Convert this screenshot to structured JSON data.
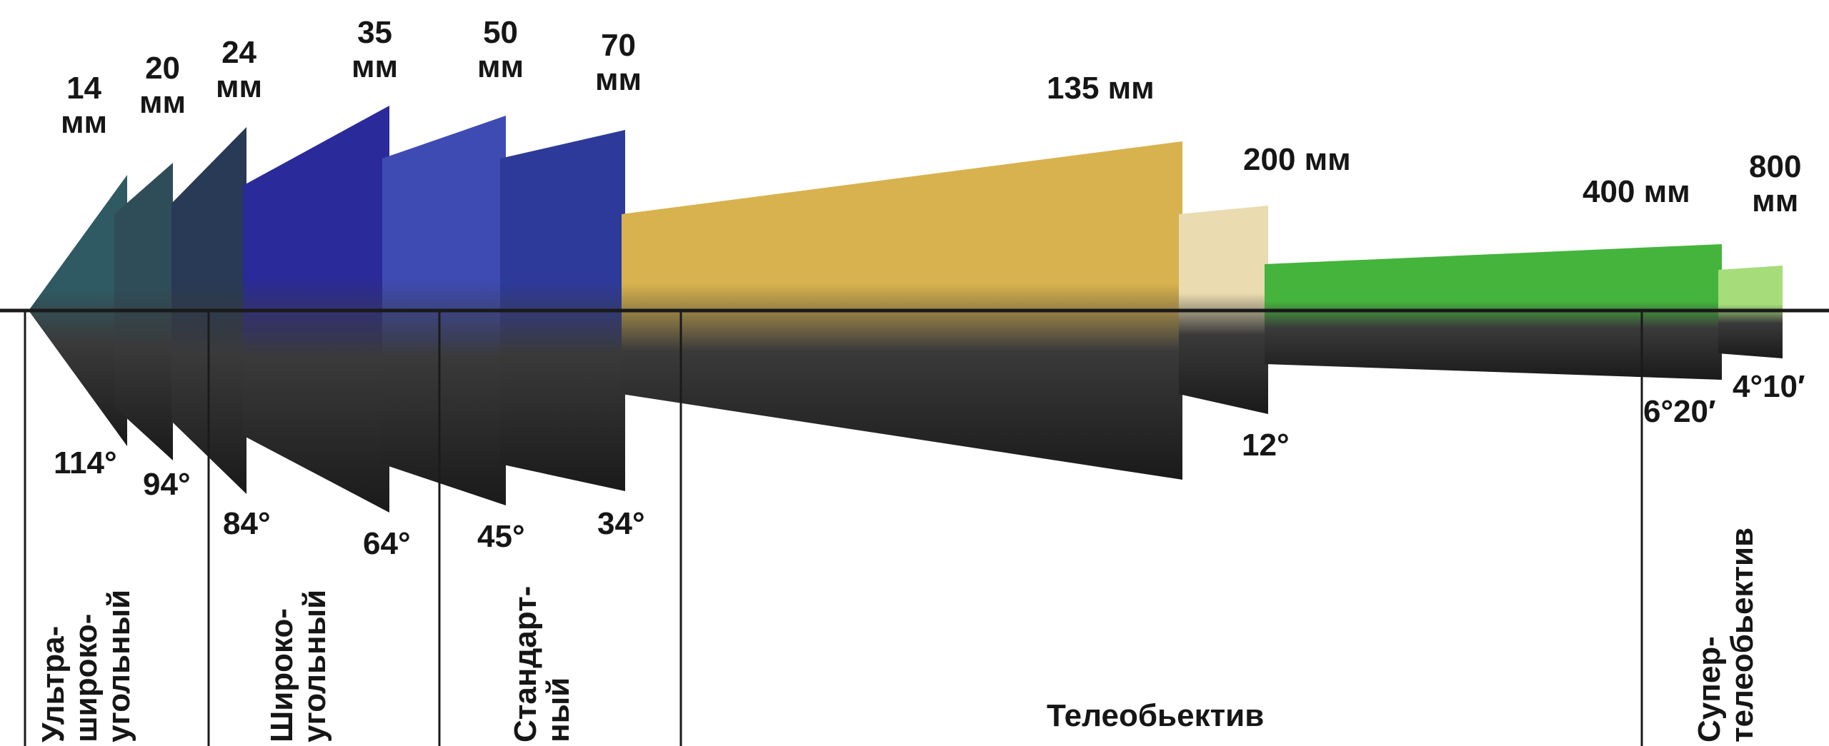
{
  "lenses": [
    {
      "focal": "14\nмм",
      "angle": "114°",
      "color": "#2f5a63"
    },
    {
      "focal": "20\nмм",
      "angle": "94°",
      "color": "#2f4d59"
    },
    {
      "focal": "24\nмм",
      "angle": "84°",
      "color": "#283a55"
    },
    {
      "focal": "35\nмм",
      "angle": "64°",
      "color": "#2a2a9a"
    },
    {
      "focal": "50\nмм",
      "angle": "45°",
      "color": "#3e4bb3"
    },
    {
      "focal": "70\nмм",
      "angle": "34°",
      "color": "#2d3a9a"
    },
    {
      "focal": "135 мм",
      "angle": "",
      "color": "#d8b24e"
    },
    {
      "focal": "200 мм",
      "angle": "12°",
      "color": "#eadbb0"
    },
    {
      "focal": "400 мм",
      "angle": "6°20′",
      "color": "#44b43c"
    },
    {
      "focal": "800\nмм",
      "angle": "4°10′",
      "color": "#a6dc7a"
    }
  ],
  "categories": {
    "ultra_wide": "Ультра-\nширoко-\nугольный",
    "wide": "Широко-\nугольный",
    "standard": "Стандарт-\nный",
    "tele": "Телеобьектив",
    "super_tele": "Супер-\nтелеобьектив"
  }
}
